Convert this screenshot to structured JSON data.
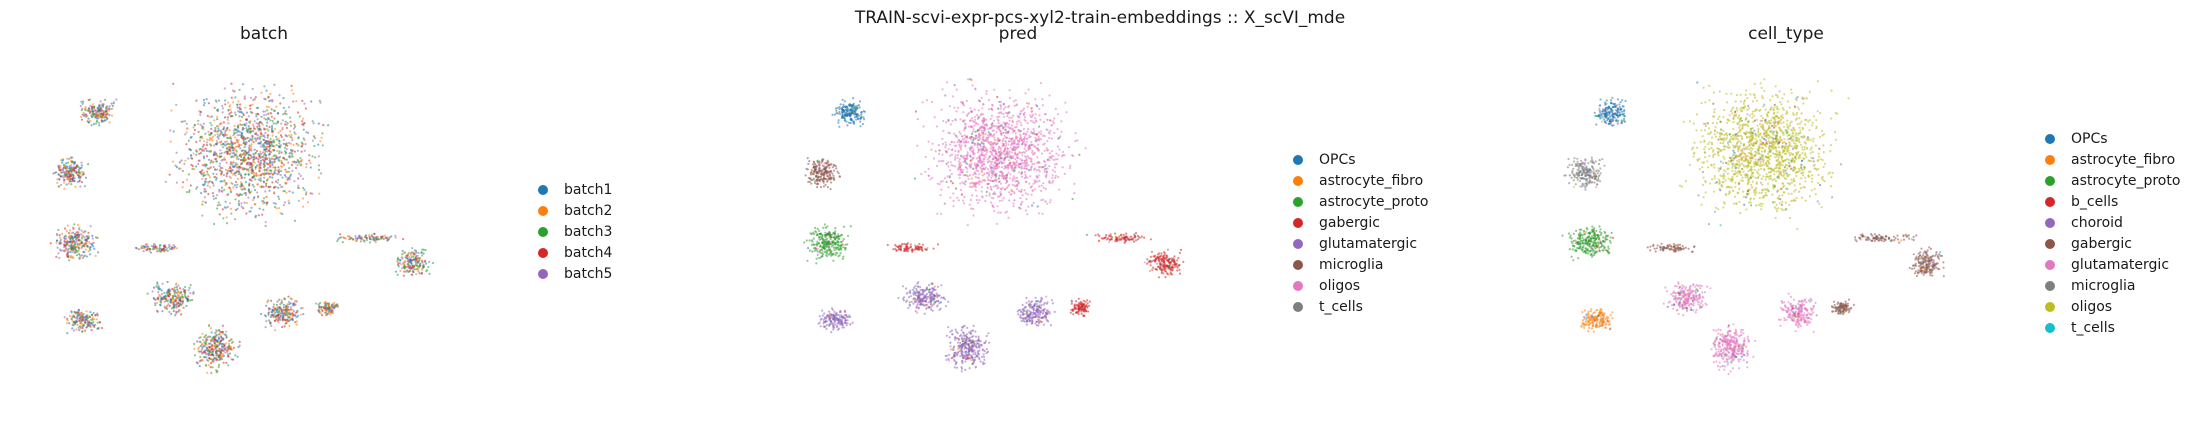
{
  "figure": {
    "title": "TRAIN-scvi-expr-pcs-xyl2-train-embeddings :: X_scVI_mde"
  },
  "chart_data": [
    {
      "type": "scatter",
      "title": "batch",
      "legend_position": "right",
      "grid": false,
      "axes_visible": false,
      "series": [
        {
          "name": "batch1",
          "color": "#1f77b4"
        },
        {
          "name": "batch2",
          "color": "#ff7f0e"
        },
        {
          "name": "batch3",
          "color": "#2ca02c"
        },
        {
          "name": "batch4",
          "color": "#d62728"
        },
        {
          "name": "batch5",
          "color": "#9467bd"
        }
      ]
    },
    {
      "type": "scatter",
      "title": "pred",
      "legend_position": "right",
      "grid": false,
      "axes_visible": false,
      "series": [
        {
          "name": "OPCs",
          "color": "#1f77b4"
        },
        {
          "name": "astrocyte_fibro",
          "color": "#ff7f0e"
        },
        {
          "name": "astrocyte_proto",
          "color": "#2ca02c"
        },
        {
          "name": "gabergic",
          "color": "#d62728"
        },
        {
          "name": "glutamatergic",
          "color": "#9467bd"
        },
        {
          "name": "microglia",
          "color": "#8c564b"
        },
        {
          "name": "oligos",
          "color": "#e377c2"
        },
        {
          "name": "t_cells",
          "color": "#7f7f7f"
        }
      ]
    },
    {
      "type": "scatter",
      "title": "cell_type",
      "legend_position": "right",
      "grid": false,
      "axes_visible": false,
      "series": [
        {
          "name": "OPCs",
          "color": "#1f77b4"
        },
        {
          "name": "astrocyte_fibro",
          "color": "#ff7f0e"
        },
        {
          "name": "astrocyte_proto",
          "color": "#2ca02c"
        },
        {
          "name": "b_cells",
          "color": "#d62728"
        },
        {
          "name": "choroid",
          "color": "#9467bd"
        },
        {
          "name": "gabergic",
          "color": "#8c564b"
        },
        {
          "name": "glutamatergic",
          "color": "#e377c2"
        },
        {
          "name": "microglia",
          "color": "#7f7f7f"
        },
        {
          "name": "oligos",
          "color": "#bcbd22"
        },
        {
          "name": "t_cells",
          "color": "#17becf"
        }
      ]
    }
  ]
}
